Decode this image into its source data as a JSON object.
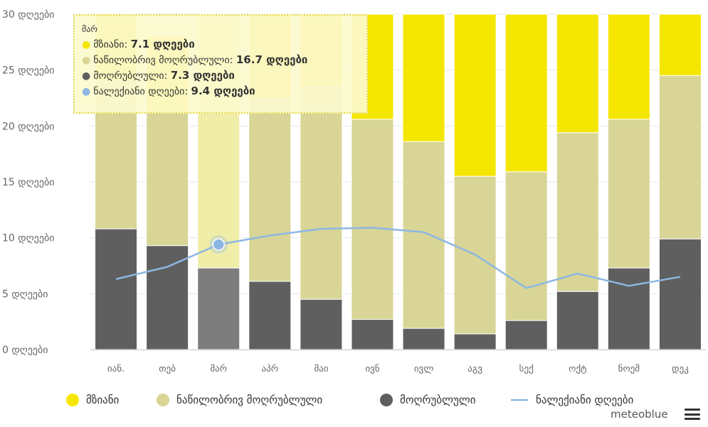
{
  "chart_data": {
    "type": "bar",
    "stacked": true,
    "categories": [
      "იან.",
      "თებ",
      "მარ",
      "აპრ",
      "მაი",
      "ივნ",
      "ივლ",
      "აგვ",
      "სექ",
      "ოქტ",
      "ნოემ",
      "დეკ"
    ],
    "y_ticks": [
      "0 დღეები",
      "5 დღეები",
      "10 დღეები",
      "15 დღეები",
      "20 დღეები",
      "25 დღეები",
      "30 დღეები"
    ],
    "ylim": [
      0,
      30
    ],
    "series": [
      {
        "name": "მოღრუბლული",
        "type": "bar",
        "color": "#5f5f5f",
        "values": [
          10.8,
          9.3,
          7.3,
          6.1,
          4.5,
          2.7,
          1.9,
          1.4,
          2.6,
          5.2,
          7.3,
          9.9
        ]
      },
      {
        "name": "ნაწილობრივ მოღრუბლული",
        "type": "bar",
        "color": "#d8d596",
        "values": [
          13.3,
          11.9,
          16.7,
          16.4,
          19.0,
          17.9,
          16.7,
          14.1,
          13.3,
          14.2,
          13.3,
          14.6
        ]
      },
      {
        "name": "მზიანი",
        "type": "bar",
        "color": "#f4e600",
        "values": [
          6.9,
          6.8,
          7.1,
          7.5,
          7.5,
          9.4,
          12.4,
          15.5,
          14.1,
          11.6,
          9.4,
          6.5
        ]
      },
      {
        "name": "ნალექიანი დღეები",
        "type": "line",
        "color": "#8db7e3",
        "values": [
          6.3,
          7.4,
          9.4,
          10.2,
          10.8,
          10.9,
          10.5,
          8.5,
          5.5,
          6.8,
          5.7,
          6.5
        ]
      }
    ],
    "highlight_index": 2,
    "grid": true,
    "legend_position": "bottom-left"
  },
  "tooltip": {
    "title": "მარ",
    "rows": [
      {
        "label": "მზიანი: ",
        "value": "7.1 დღეები",
        "color": "#f4e600"
      },
      {
        "label": "ნაწილობრივ მოღრუბლული: ",
        "value": "16.7 დღეები",
        "color": "#d8d596"
      },
      {
        "label": "მოღრუბლული: ",
        "value": "7.3 დღეები",
        "color": "#5f5f5f"
      },
      {
        "label": "ნალექიანი დღეები: ",
        "value": "9.4 დღეები",
        "color": "#8db7e3"
      }
    ]
  },
  "legend": {
    "items": [
      {
        "label": "მზიანი",
        "color": "#f4e600",
        "kind": "dot"
      },
      {
        "label": "ნაწილობრივ მოღრუბლული",
        "color": "#d8d596",
        "kind": "dot"
      },
      {
        "label": "მოღრუბლული",
        "color": "#5f5f5f",
        "kind": "dot"
      },
      {
        "label": "ნალექიანი დღეები",
        "color": "#8db7e3",
        "kind": "line"
      }
    ]
  },
  "brand": {
    "text": "meteoblue",
    "menu_icon": "hamburger-menu-icon"
  }
}
